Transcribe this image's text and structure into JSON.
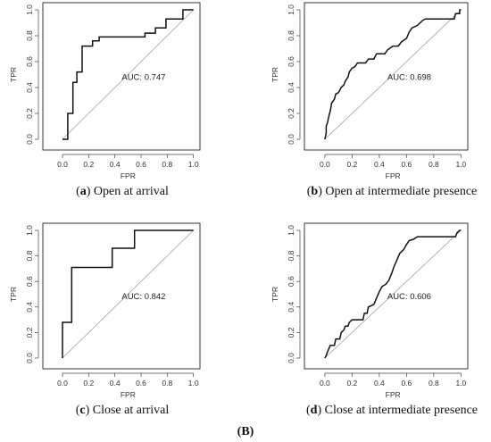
{
  "figure_label": "(B)",
  "chart_data": [
    {
      "type": "line",
      "panel_letter": "a",
      "caption": "Open at arrival",
      "xlabel": "FPR",
      "ylabel": "TPR",
      "xlim": [
        -0.15,
        1.05
      ],
      "ylim": [
        0,
        1.0
      ],
      "xticks": [
        "0.0",
        "0.2",
        "0.4",
        "0.6",
        "0.8",
        "1.0"
      ],
      "yticks": [
        "0.0",
        "0.2",
        "0.4",
        "0.6",
        "0.8",
        "1.0"
      ],
      "annotation": "AUC: 0.747",
      "reference_line": [
        [
          0,
          0
        ],
        [
          1,
          1
        ]
      ],
      "points": [
        [
          0,
          0
        ],
        [
          0.04,
          0
        ],
        [
          0.04,
          0.2
        ],
        [
          0.08,
          0.2
        ],
        [
          0.08,
          0.44
        ],
        [
          0.11,
          0.44
        ],
        [
          0.11,
          0.52
        ],
        [
          0.15,
          0.52
        ],
        [
          0.15,
          0.72
        ],
        [
          0.23,
          0.72
        ],
        [
          0.23,
          0.76
        ],
        [
          0.28,
          0.76
        ],
        [
          0.28,
          0.79
        ],
        [
          0.63,
          0.79
        ],
        [
          0.63,
          0.82
        ],
        [
          0.71,
          0.82
        ],
        [
          0.71,
          0.86
        ],
        [
          0.79,
          0.86
        ],
        [
          0.79,
          0.93
        ],
        [
          0.92,
          0.93
        ],
        [
          0.92,
          1.0
        ],
        [
          1.0,
          1.0
        ]
      ]
    },
    {
      "type": "line",
      "panel_letter": "b",
      "caption": "Open at intermediate presence",
      "xlabel": "FPR",
      "ylabel": "TPR",
      "xlim": [
        -0.15,
        1.05
      ],
      "ylim": [
        0,
        1.0
      ],
      "xticks": [
        "0.0",
        "0.2",
        "0.4",
        "0.6",
        "0.8",
        "1.0"
      ],
      "yticks": [
        "0.0",
        "0.2",
        "0.4",
        "0.6",
        "0.8",
        "1.0"
      ],
      "annotation": "AUC: 0.698",
      "reference_line": [
        [
          0,
          0
        ],
        [
          1,
          1
        ]
      ],
      "points": [
        [
          0,
          0
        ],
        [
          0.01,
          0.05
        ],
        [
          0.01,
          0.1
        ],
        [
          0.02,
          0.13
        ],
        [
          0.03,
          0.18
        ],
        [
          0.04,
          0.22
        ],
        [
          0.05,
          0.28
        ],
        [
          0.07,
          0.31
        ],
        [
          0.08,
          0.35
        ],
        [
          0.1,
          0.36
        ],
        [
          0.12,
          0.4
        ],
        [
          0.14,
          0.42
        ],
        [
          0.15,
          0.45
        ],
        [
          0.17,
          0.48
        ],
        [
          0.18,
          0.52
        ],
        [
          0.2,
          0.55
        ],
        [
          0.22,
          0.56
        ],
        [
          0.24,
          0.59
        ],
        [
          0.3,
          0.59
        ],
        [
          0.32,
          0.62
        ],
        [
          0.36,
          0.62
        ],
        [
          0.38,
          0.66
        ],
        [
          0.44,
          0.66
        ],
        [
          0.46,
          0.69
        ],
        [
          0.5,
          0.72
        ],
        [
          0.54,
          0.72
        ],
        [
          0.56,
          0.75
        ],
        [
          0.6,
          0.78
        ],
        [
          0.62,
          0.83
        ],
        [
          0.64,
          0.86
        ],
        [
          0.68,
          0.88
        ],
        [
          0.72,
          0.92
        ],
        [
          0.74,
          0.93
        ],
        [
          0.95,
          0.93
        ],
        [
          0.96,
          0.97
        ],
        [
          0.99,
          0.97
        ],
        [
          0.99,
          1.0
        ],
        [
          1.0,
          1.0
        ]
      ]
    },
    {
      "type": "line",
      "panel_letter": "c",
      "caption": "Close at arrival",
      "xlabel": "FPR",
      "ylabel": "TPR",
      "xlim": [
        -0.15,
        1.05
      ],
      "ylim": [
        0,
        1.0
      ],
      "xticks": [
        "0.0",
        "0.2",
        "0.4",
        "0.6",
        "0.8",
        "1.0"
      ],
      "yticks": [
        "0.0",
        "0.2",
        "0.4",
        "0.6",
        "0.8",
        "1.0"
      ],
      "annotation": "AUC: 0.842",
      "reference_line": [
        [
          0,
          0
        ],
        [
          1,
          1
        ]
      ],
      "points": [
        [
          0,
          0
        ],
        [
          0,
          0.28
        ],
        [
          0.07,
          0.28
        ],
        [
          0.07,
          0.71
        ],
        [
          0.38,
          0.71
        ],
        [
          0.38,
          0.86
        ],
        [
          0.55,
          0.86
        ],
        [
          0.55,
          1.0
        ],
        [
          1.0,
          1.0
        ]
      ]
    },
    {
      "type": "line",
      "panel_letter": "d",
      "caption": "Close at intermediate presence",
      "xlabel": "FPR",
      "ylabel": "TPR",
      "xlim": [
        -0.15,
        1.05
      ],
      "ylim": [
        0,
        1.0
      ],
      "xticks": [
        "0.0",
        "0.2",
        "0.4",
        "0.6",
        "0.8",
        "1.0"
      ],
      "yticks": [
        "0.0",
        "0.2",
        "0.4",
        "0.6",
        "0.8",
        "1.0"
      ],
      "annotation": "AUC: 0.606",
      "reference_line": [
        [
          0,
          0
        ],
        [
          1,
          1
        ]
      ],
      "points": [
        [
          0,
          0
        ],
        [
          0.01,
          0.02
        ],
        [
          0.02,
          0.05
        ],
        [
          0.04,
          0.1
        ],
        [
          0.07,
          0.1
        ],
        [
          0.08,
          0.15
        ],
        [
          0.11,
          0.15
        ],
        [
          0.12,
          0.2
        ],
        [
          0.14,
          0.22
        ],
        [
          0.15,
          0.25
        ],
        [
          0.17,
          0.25
        ],
        [
          0.18,
          0.28
        ],
        [
          0.2,
          0.3
        ],
        [
          0.28,
          0.3
        ],
        [
          0.29,
          0.35
        ],
        [
          0.31,
          0.35
        ],
        [
          0.32,
          0.4
        ],
        [
          0.36,
          0.42
        ],
        [
          0.38,
          0.47
        ],
        [
          0.4,
          0.52
        ],
        [
          0.42,
          0.56
        ],
        [
          0.45,
          0.58
        ],
        [
          0.47,
          0.61
        ],
        [
          0.49,
          0.66
        ],
        [
          0.51,
          0.72
        ],
        [
          0.53,
          0.77
        ],
        [
          0.55,
          0.82
        ],
        [
          0.58,
          0.85
        ],
        [
          0.6,
          0.89
        ],
        [
          0.62,
          0.92
        ],
        [
          0.65,
          0.93
        ],
        [
          0.68,
          0.95
        ],
        [
          0.96,
          0.95
        ],
        [
          0.97,
          0.98
        ],
        [
          0.99,
          1.0
        ],
        [
          1.0,
          1.0
        ]
      ]
    }
  ]
}
